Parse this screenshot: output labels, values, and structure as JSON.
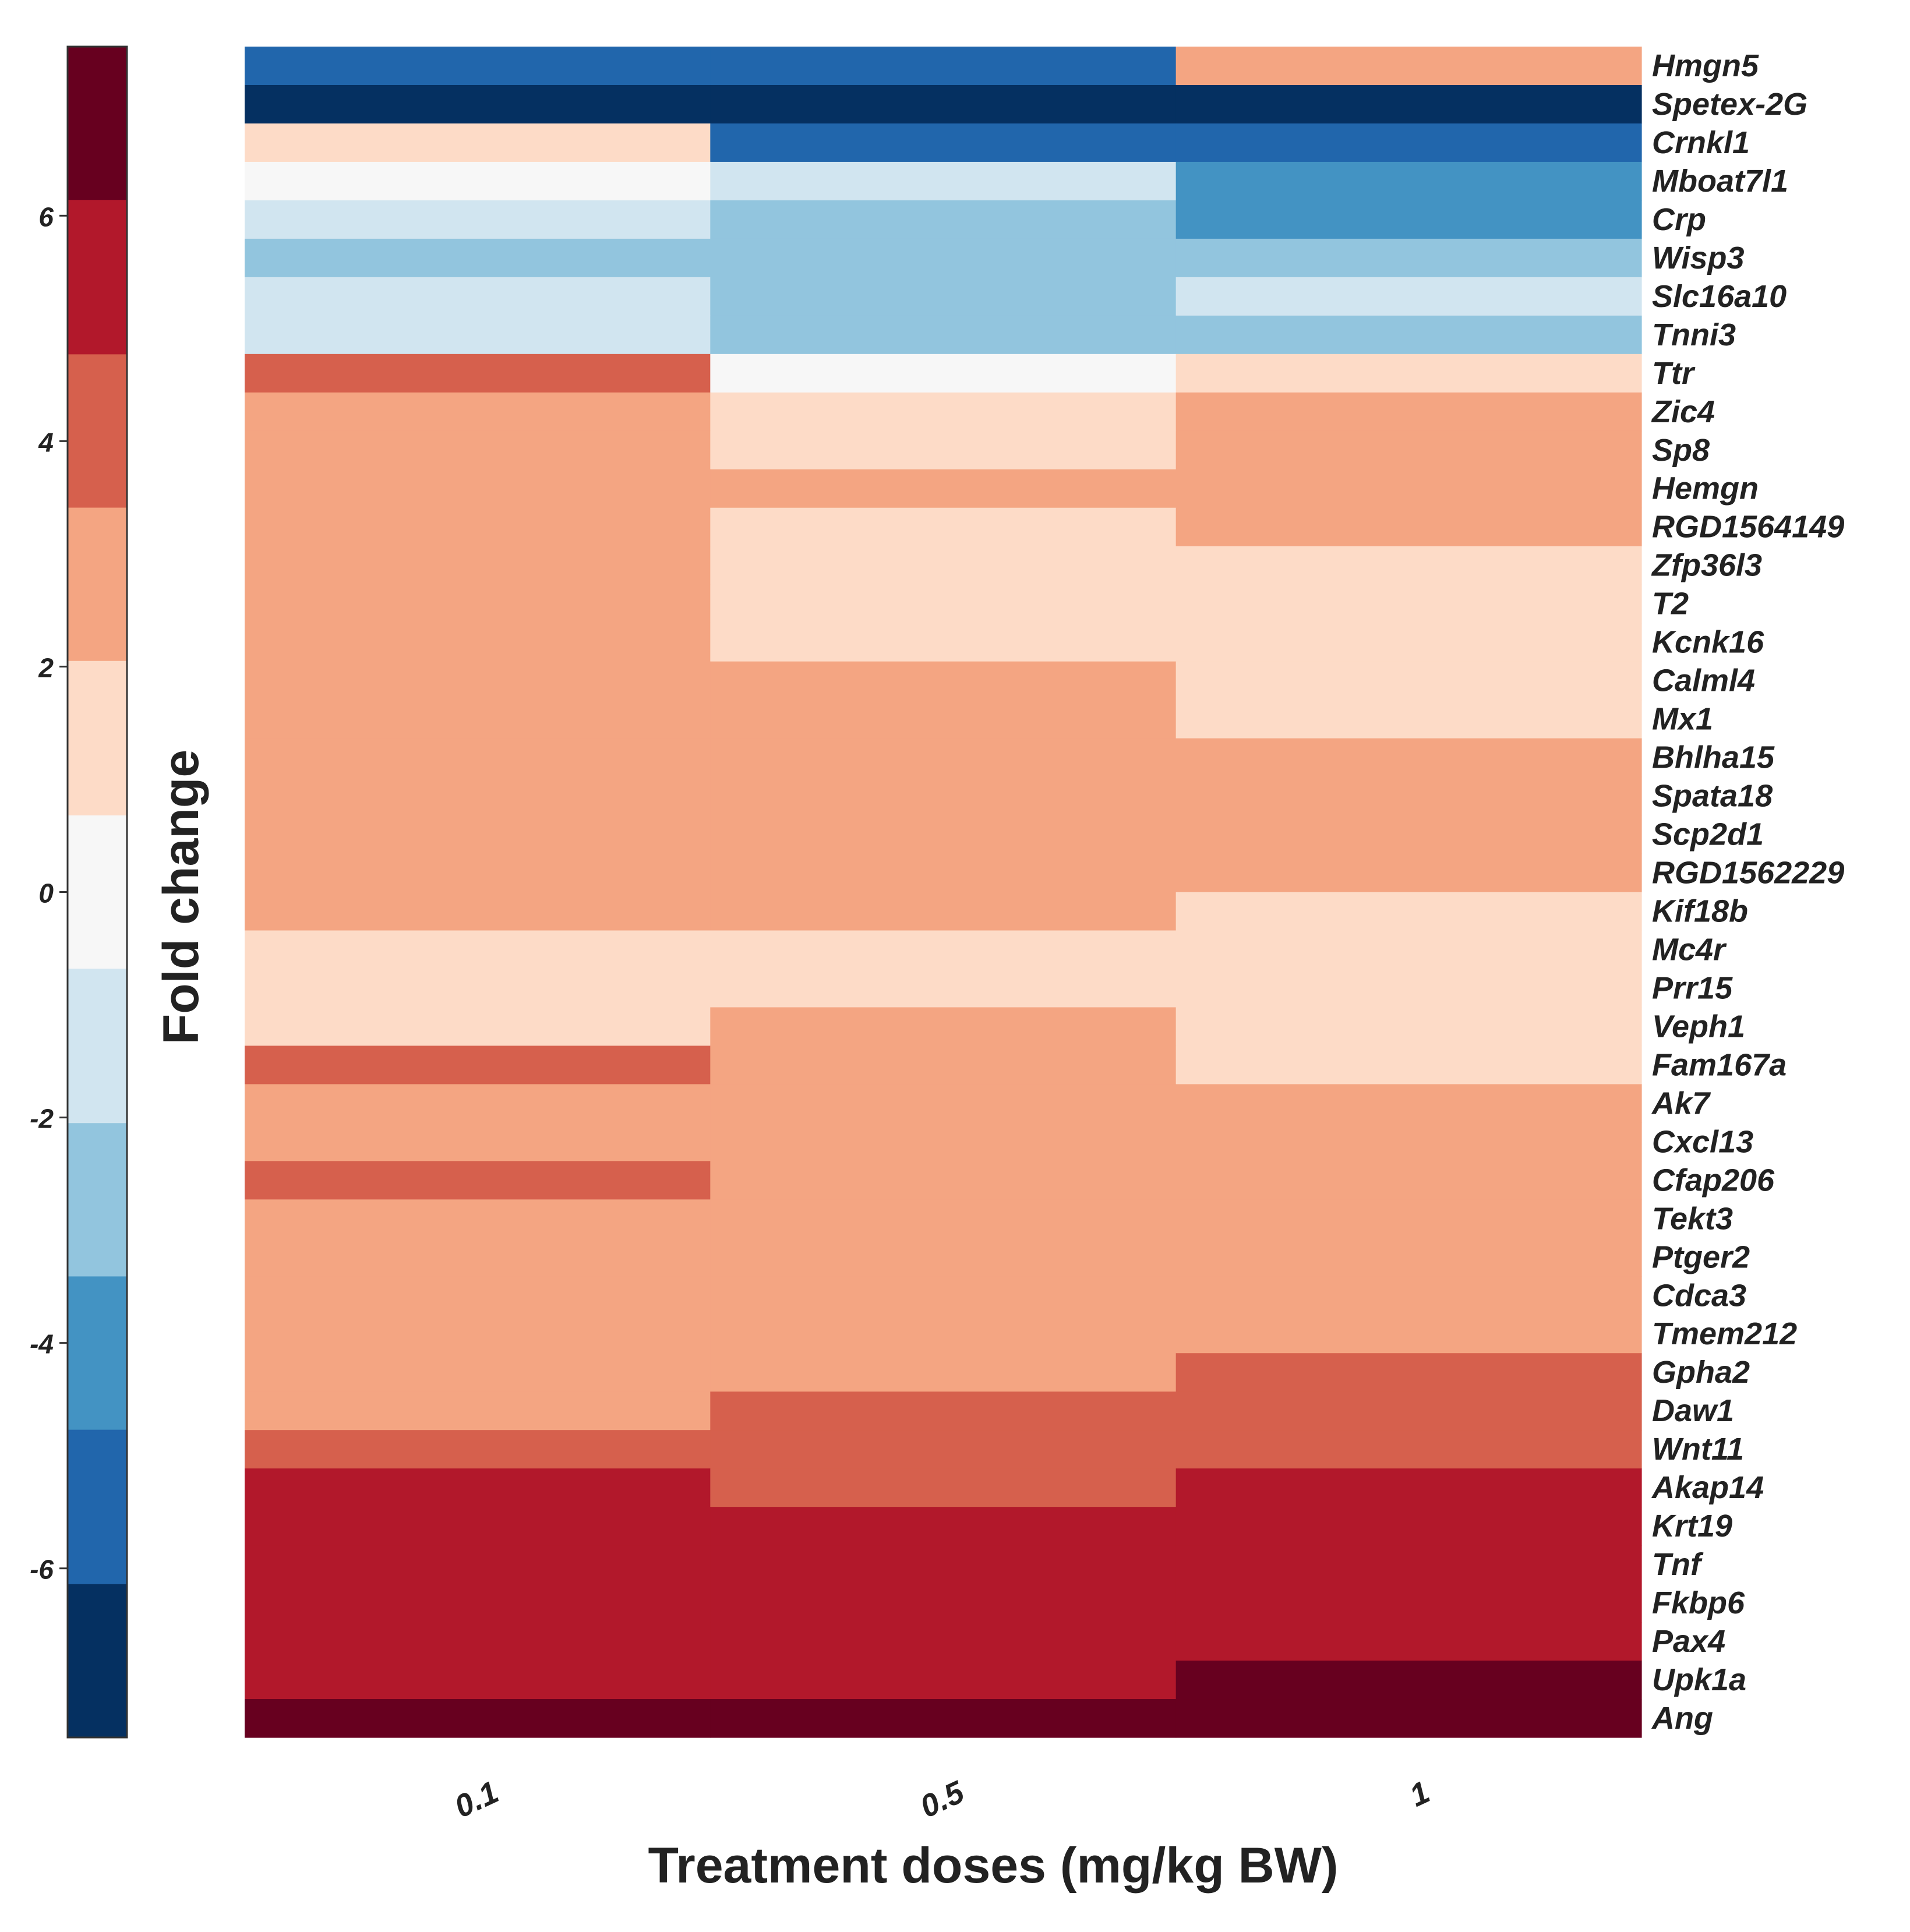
{
  "chart_data": {
    "type": "heatmap",
    "title": "",
    "xlabel": "Treatment doses (mg/kg BW)",
    "ylabel": "",
    "columns": [
      "0.1",
      "0.5",
      "1"
    ],
    "rows": [
      "Hmgn5",
      "Spetex-2G",
      "Crnkl1",
      "Mboat7l1",
      "Crp",
      "Wisp3",
      "Slc16a10",
      "Tnni3",
      "Ttr",
      "Zic4",
      "Sp8",
      "Hemgn",
      "RGD1564149",
      "Zfp36l3",
      "T2",
      "Kcnk16",
      "Calml4",
      "Mx1",
      "Bhlha15",
      "Spata18",
      "Scp2d1",
      "RGD1562229",
      "Kif18b",
      "Mc4r",
      "Prr15",
      "Veph1",
      "Fam167a",
      "Ak7",
      "Cxcl13",
      "Cfap206",
      "Tekt3",
      "Ptger2",
      "Cdca3",
      "Tmem212",
      "Gpha2",
      "Daw1",
      "Wnt11",
      "Akap14",
      "Krt19",
      "Tnf",
      "Fkbp6",
      "Pax4",
      "Upk1a",
      "Ang"
    ],
    "values": [
      [
        -5,
        -5,
        3
      ],
      [
        -7,
        -7,
        -7
      ],
      [
        1,
        -5,
        -5
      ],
      [
        0,
        -1,
        -4
      ],
      [
        -1,
        -3,
        -4
      ],
      [
        -3,
        -3,
        -3
      ],
      [
        -1,
        -3,
        -1
      ],
      [
        -1,
        -3,
        -3
      ],
      [
        4,
        0,
        1
      ],
      [
        3,
        1,
        3
      ],
      [
        3,
        1,
        3
      ],
      [
        3,
        3,
        3
      ],
      [
        3,
        1,
        3
      ],
      [
        3,
        1,
        1
      ],
      [
        3,
        1,
        1
      ],
      [
        3,
        1,
        1
      ],
      [
        3,
        3,
        1
      ],
      [
        3,
        3,
        1
      ],
      [
        3,
        3,
        3
      ],
      [
        3,
        3,
        3
      ],
      [
        3,
        3,
        3
      ],
      [
        3,
        3,
        3
      ],
      [
        3,
        3,
        1
      ],
      [
        1,
        1,
        1
      ],
      [
        1,
        1,
        1
      ],
      [
        1,
        3,
        1
      ],
      [
        4,
        3,
        1
      ],
      [
        3,
        3,
        3
      ],
      [
        3,
        3,
        3
      ],
      [
        4,
        3,
        3
      ],
      [
        3,
        3,
        3
      ],
      [
        3,
        3,
        3
      ],
      [
        3,
        3,
        3
      ],
      [
        3,
        3,
        3
      ],
      [
        3,
        3,
        4
      ],
      [
        3,
        4,
        4
      ],
      [
        4,
        4,
        4
      ],
      [
        6,
        4,
        6
      ],
      [
        6,
        6,
        6
      ],
      [
        6,
        6,
        6
      ],
      [
        6,
        6,
        6
      ],
      [
        6,
        6,
        6
      ],
      [
        6,
        6,
        7
      ],
      [
        7,
        7,
        7
      ]
    ],
    "colorbar": {
      "label": "Fold change",
      "range": [
        -7.5,
        7.5
      ],
      "ticks": [
        6,
        4,
        2,
        0,
        -2,
        -4,
        -6
      ],
      "tick_labels": [
        "6",
        "4",
        "2",
        "0",
        "-2",
        "-4",
        "-6"
      ],
      "bins": [
        {
          "max": 7.5,
          "color": "#67001F"
        },
        {
          "max": 6.14,
          "color": "#B2182B"
        },
        {
          "max": 4.77,
          "color": "#D6604D"
        },
        {
          "max": 3.41,
          "color": "#F4A582"
        },
        {
          "max": 2.05,
          "color": "#FDDBC7"
        },
        {
          "max": 0.68,
          "color": "#F7F7F7"
        },
        {
          "max": -0.68,
          "color": "#D1E5F0"
        },
        {
          "max": -2.05,
          "color": "#92C5DE"
        },
        {
          "max": -3.41,
          "color": "#4393C3"
        },
        {
          "max": -4.77,
          "color": "#2166AC"
        },
        {
          "max": -6.14,
          "color": "#053061"
        }
      ]
    }
  },
  "colors": {
    "text": "#222222",
    "axis": "#333333",
    "background": "#ffffff"
  }
}
